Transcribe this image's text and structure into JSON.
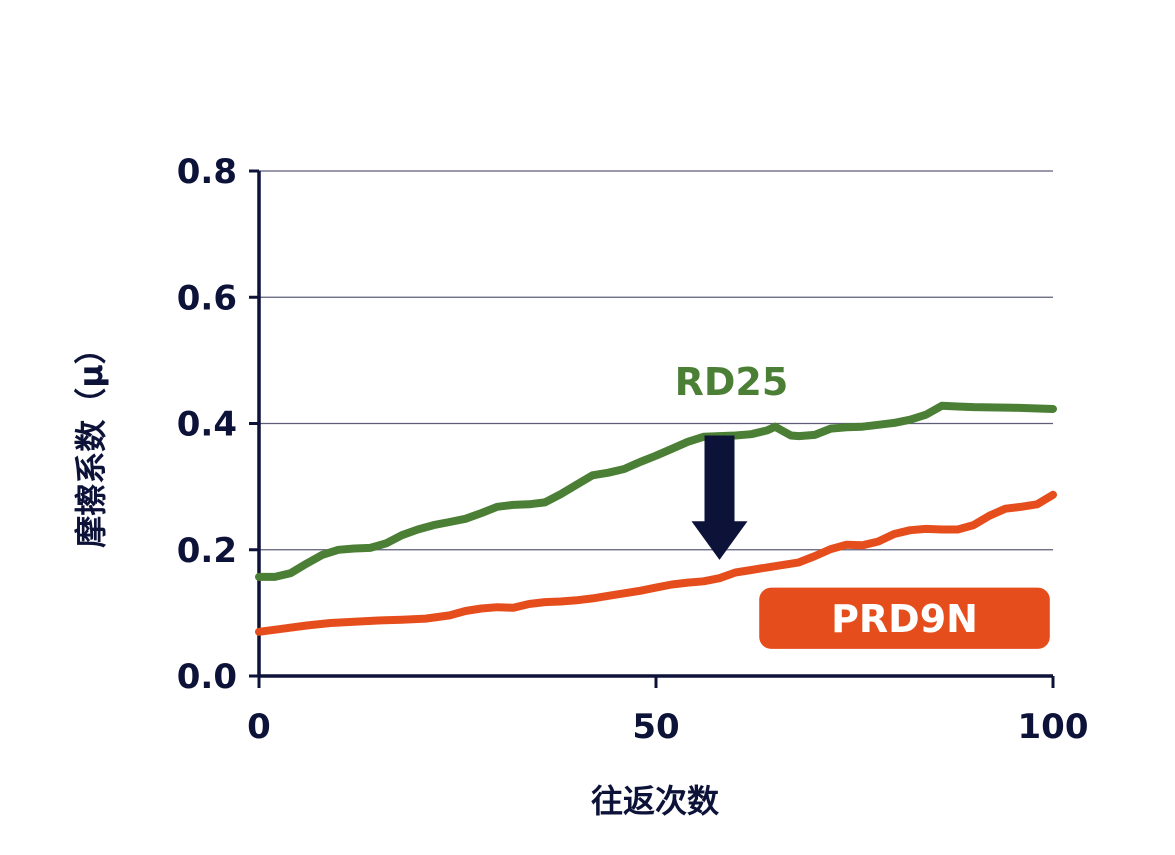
{
  "chart_data": {
    "type": "line",
    "xlabel": "往返次数",
    "ylabel": "摩擦系数（μ）",
    "xlim": [
      0,
      100
    ],
    "ylim": [
      0,
      0.8
    ],
    "x_ticks": [
      "0",
      "50",
      "100"
    ],
    "y_ticks": [
      "0.0",
      "0.2",
      "0.4",
      "0.6",
      "0.8"
    ],
    "grid": true,
    "series": [
      {
        "name": "RD25",
        "color": "#4a7f35",
        "points": [
          [
            0,
            0.157
          ],
          [
            2,
            0.157
          ],
          [
            4,
            0.163
          ],
          [
            6,
            0.178
          ],
          [
            8,
            0.192
          ],
          [
            10,
            0.2
          ],
          [
            12,
            0.202
          ],
          [
            14,
            0.203
          ],
          [
            16,
            0.21
          ],
          [
            18,
            0.223
          ],
          [
            20,
            0.232
          ],
          [
            22,
            0.239
          ],
          [
            24,
            0.244
          ],
          [
            26,
            0.249
          ],
          [
            28,
            0.258
          ],
          [
            30,
            0.268
          ],
          [
            32,
            0.271
          ],
          [
            34,
            0.272
          ],
          [
            36,
            0.275
          ],
          [
            38,
            0.288
          ],
          [
            40,
            0.303
          ],
          [
            42,
            0.318
          ],
          [
            44,
            0.322
          ],
          [
            46,
            0.328
          ],
          [
            48,
            0.339
          ],
          [
            50,
            0.349
          ],
          [
            52,
            0.36
          ],
          [
            54,
            0.371
          ],
          [
            56,
            0.379
          ],
          [
            58,
            0.38
          ],
          [
            60,
            0.381
          ],
          [
            62,
            0.383
          ],
          [
            64,
            0.389
          ],
          [
            65,
            0.395
          ],
          [
            66,
            0.388
          ],
          [
            67,
            0.381
          ],
          [
            68,
            0.38
          ],
          [
            70,
            0.382
          ],
          [
            72,
            0.392
          ],
          [
            74,
            0.394
          ],
          [
            76,
            0.395
          ],
          [
            78,
            0.398
          ],
          [
            80,
            0.401
          ],
          [
            82,
            0.406
          ],
          [
            84,
            0.414
          ],
          [
            86,
            0.428
          ],
          [
            88,
            0.427
          ],
          [
            90,
            0.426
          ],
          [
            95,
            0.425
          ],
          [
            100,
            0.423
          ]
        ]
      },
      {
        "name": "PRD9N",
        "color": "#e54e1c",
        "points": [
          [
            0,
            0.07
          ],
          [
            3,
            0.075
          ],
          [
            6,
            0.08
          ],
          [
            9,
            0.084
          ],
          [
            12,
            0.086
          ],
          [
            15,
            0.088
          ],
          [
            18,
            0.089
          ],
          [
            21,
            0.091
          ],
          [
            24,
            0.096
          ],
          [
            26,
            0.103
          ],
          [
            28,
            0.107
          ],
          [
            30,
            0.109
          ],
          [
            32,
            0.108
          ],
          [
            34,
            0.114
          ],
          [
            36,
            0.117
          ],
          [
            38,
            0.118
          ],
          [
            40,
            0.12
          ],
          [
            42,
            0.123
          ],
          [
            44,
            0.127
          ],
          [
            46,
            0.131
          ],
          [
            48,
            0.135
          ],
          [
            50,
            0.14
          ],
          [
            52,
            0.145
          ],
          [
            54,
            0.148
          ],
          [
            56,
            0.15
          ],
          [
            58,
            0.155
          ],
          [
            60,
            0.164
          ],
          [
            62,
            0.168
          ],
          [
            64,
            0.172
          ],
          [
            66,
            0.176
          ],
          [
            68,
            0.18
          ],
          [
            70,
            0.19
          ],
          [
            72,
            0.201
          ],
          [
            74,
            0.208
          ],
          [
            76,
            0.207
          ],
          [
            78,
            0.213
          ],
          [
            80,
            0.225
          ],
          [
            82,
            0.231
          ],
          [
            84,
            0.233
          ],
          [
            86,
            0.232
          ],
          [
            88,
            0.232
          ],
          [
            90,
            0.239
          ],
          [
            92,
            0.254
          ],
          [
            94,
            0.265
          ],
          [
            96,
            0.268
          ],
          [
            98,
            0.272
          ],
          [
            100,
            0.287
          ]
        ]
      }
    ],
    "annotations": [
      {
        "type": "arrow",
        "from_series": "RD25",
        "to_series": "PRD9N",
        "color": "#0d1238",
        "text": ""
      }
    ]
  },
  "colors": {
    "axis": "#0d1238",
    "grid": "#5d5d7a",
    "background": "#ffffff",
    "prd9n_badge_text": "#ffffff"
  }
}
